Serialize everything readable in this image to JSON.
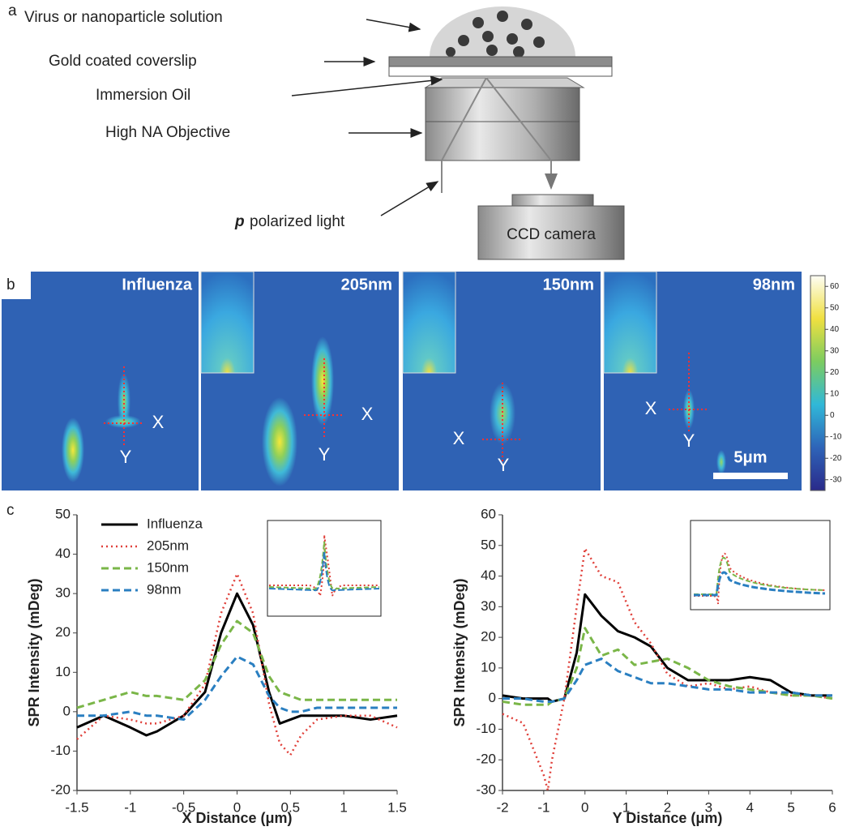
{
  "panel_a": {
    "label": "a",
    "solution": "Virus or nanoparticle solution",
    "coverslip": "Gold coated coverslip",
    "oil": "Immersion Oil",
    "objective": "High NA Objective",
    "light_p": "p",
    "light": "polarized light",
    "camera": "CCD camera"
  },
  "panel_b": {
    "label": "b",
    "images": [
      {
        "title": "Influenza",
        "x_label": "X",
        "y_label": "Y"
      },
      {
        "title": "205nm",
        "x_label": "X",
        "y_label": "Y"
      },
      {
        "title": "150nm",
        "x_label": "X",
        "y_label": "Y"
      },
      {
        "title": "98nm",
        "x_label": "X",
        "y_label": "Y"
      }
    ],
    "scale_bar": "5μm",
    "colorbar": {
      "range": [
        -35,
        65
      ],
      "ticks": [
        60,
        50,
        40,
        30,
        20,
        10,
        0,
        -10,
        -20,
        -30
      ]
    }
  },
  "panel_c": {
    "label": "c"
  },
  "chart_data": [
    {
      "type": "line",
      "x_label": "X Distance (μm)",
      "y_label": "SPR Intensity (mDeg)",
      "x": [
        -1.5,
        -1.25,
        -1,
        -0.85,
        -0.75,
        -0.5,
        -0.3,
        -0.15,
        0,
        0.15,
        0.3,
        0.4,
        0.5,
        0.6,
        0.75,
        1,
        1.25,
        1.5
      ],
      "xlim": [
        -1.5,
        1.5
      ],
      "xticks": [
        -1.5,
        -1,
        -0.5,
        0,
        0.5,
        1,
        1.5
      ],
      "ylim": [
        -20,
        50
      ],
      "yticks": [
        -20,
        -10,
        0,
        10,
        20,
        30,
        40,
        50
      ],
      "legend": "upper left",
      "series": [
        {
          "name": "Influenza",
          "color": "#000000",
          "style": "solid",
          "values": [
            -4,
            -1,
            -4,
            -6,
            -5,
            -1,
            5,
            20,
            30,
            22,
            5,
            -3,
            -2,
            -1,
            -1,
            -1,
            -2,
            -1
          ]
        },
        {
          "name": "205nm",
          "color": "#e0403a",
          "style": "dotted",
          "values": [
            -7,
            -1,
            -2,
            -3,
            -3,
            -1,
            7,
            25,
            35,
            25,
            2,
            -8,
            -11,
            -6,
            -2,
            -1,
            -1,
            -4
          ]
        },
        {
          "name": "150nm",
          "color": "#7ab648",
          "style": "dashed",
          "values": [
            1,
            3,
            5,
            4,
            4,
            3,
            8,
            17,
            23,
            20,
            9,
            5,
            4,
            3,
            3,
            3,
            3,
            3
          ]
        },
        {
          "name": "98nm",
          "color": "#2a7fc1",
          "style": "dashed",
          "values": [
            -1,
            -1,
            0,
            -1,
            -1,
            -2,
            3,
            9,
            14,
            12,
            4,
            1,
            0,
            0,
            1,
            1,
            1,
            1
          ]
        }
      ]
    },
    {
      "type": "line",
      "x_label": "Y Distance (μm)",
      "y_label": "SPR Intensity (mDeg)",
      "x": [
        -2,
        -1.5,
        -1,
        -0.9,
        -0.8,
        -0.5,
        -0.2,
        0,
        0.4,
        0.8,
        1.2,
        1.6,
        2,
        2.5,
        3,
        3.5,
        4,
        4.5,
        5,
        5.5,
        6
      ],
      "xlim": [
        -2,
        6
      ],
      "xticks": [
        -2,
        -1,
        0,
        1,
        2,
        3,
        4,
        5,
        6
      ],
      "ylim": [
        -30,
        60
      ],
      "yticks": [
        -30,
        -20,
        -10,
        0,
        10,
        20,
        30,
        40,
        50,
        60
      ],
      "series": [
        {
          "name": "Influenza",
          "color": "#000000",
          "style": "solid",
          "values": [
            1,
            0,
            0,
            0,
            -1,
            0,
            15,
            34,
            27,
            22,
            20,
            17,
            10,
            6,
            6,
            6,
            7,
            6,
            2,
            1,
            1
          ]
        },
        {
          "name": "205nm",
          "color": "#e0403a",
          "style": "dotted",
          "values": [
            -5,
            -8,
            -25,
            -30,
            -20,
            0,
            30,
            49,
            40,
            38,
            25,
            18,
            8,
            4,
            5,
            3,
            4,
            2,
            1,
            1,
            0
          ]
        },
        {
          "name": "150nm",
          "color": "#7ab648",
          "style": "dashed",
          "values": [
            -1,
            -2,
            -2,
            -2,
            -1,
            0,
            10,
            23,
            14,
            16,
            11,
            12,
            13,
            10,
            6,
            4,
            3,
            2,
            1,
            1,
            0
          ]
        },
        {
          "name": "98nm",
          "color": "#2a7fc1",
          "style": "dashed",
          "values": [
            0,
            0,
            -1,
            -1,
            -1,
            0,
            6,
            11,
            13,
            9,
            7,
            5,
            5,
            4,
            3,
            3,
            2,
            2,
            2,
            1,
            1
          ]
        }
      ]
    }
  ]
}
